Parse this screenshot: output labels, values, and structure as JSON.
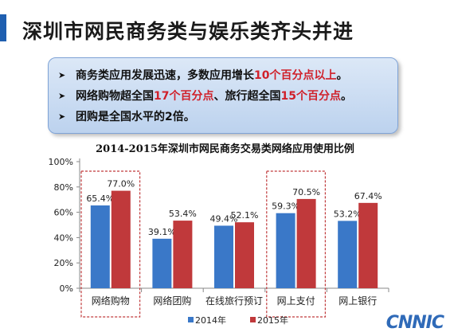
{
  "slide": {
    "title": "深圳市网民商务类与娱乐类齐头并进",
    "bullets": [
      {
        "parts": [
          {
            "text": "商务类应用发展迅速，多数应用增长",
            "hl": false
          },
          {
            "text": "10个百分点以上",
            "hl": true
          },
          {
            "text": "。",
            "hl": false
          }
        ]
      },
      {
        "parts": [
          {
            "text": "网络购物超全国",
            "hl": false
          },
          {
            "text": "17个百分点",
            "hl": true
          },
          {
            "text": "、旅行超全国",
            "hl": false
          },
          {
            "text": "15个百分点",
            "hl": true
          },
          {
            "text": "。",
            "hl": false
          }
        ]
      },
      {
        "parts": [
          {
            "text": "团购是全国水平的2倍。",
            "hl": false
          }
        ]
      }
    ],
    "logo": "CNNIC"
  },
  "chart_data": {
    "type": "bar",
    "title": "2014-2015年深圳市网民商务交易类网络应用使用比例",
    "categories": [
      "网络购物",
      "网络团购",
      "在线旅行预订",
      "网上支付",
      "网上银行"
    ],
    "series": [
      {
        "name": "2014年",
        "values": [
          65.4,
          39.1,
          49.4,
          59.3,
          53.2
        ],
        "labels": [
          "65.4%",
          "39.1%",
          "49.4%",
          "59.3%",
          "53.2%"
        ],
        "color": "#3a78c8"
      },
      {
        "name": "2015年",
        "values": [
          77.0,
          53.4,
          52.1,
          70.5,
          67.4
        ],
        "labels": [
          "77.0%",
          "53.4%",
          "52.1%",
          "70.5%",
          "67.4%"
        ],
        "color": "#c0393b"
      }
    ],
    "ylim": [
      0,
      100
    ],
    "yticks": [
      0,
      20,
      40,
      60,
      80,
      100
    ],
    "ytick_labels": [
      "0%",
      "20%",
      "40%",
      "60%",
      "80%",
      "100%"
    ],
    "highlighted_categories": [
      0,
      3
    ],
    "highlight_color": "#c0393b",
    "legend_position": "bottom",
    "grid": false
  }
}
